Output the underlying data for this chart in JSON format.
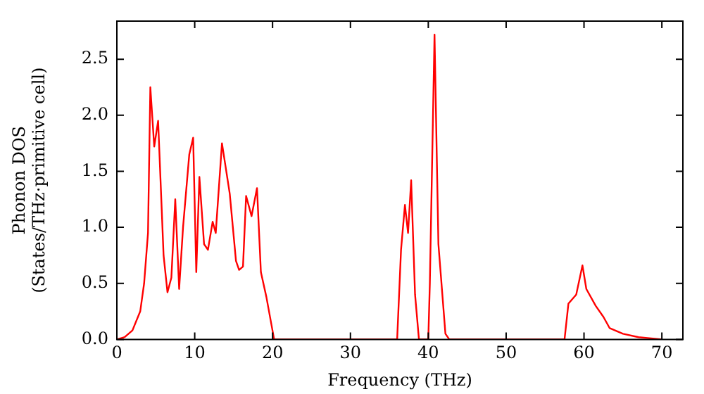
{
  "chart_data": {
    "type": "line",
    "xlabel": "Frequency (THz)",
    "ylabel": "Phonon DOS\n(States/THz·primitive cell)",
    "x": [
      0,
      1,
      2,
      3,
      3.5,
      4,
      4.3,
      4.8,
      5.3,
      6,
      6.5,
      7,
      7.5,
      8,
      8.5,
      9.3,
      9.8,
      10.2,
      10.6,
      11.2,
      11.7,
      12.3,
      12.7,
      13.5,
      14.5,
      15.3,
      15.7,
      16.2,
      16.6,
      17.3,
      18,
      18.5,
      19.2,
      20.2,
      36,
      36.5,
      37,
      37.4,
      37.8,
      38.3,
      38.8,
      40,
      40.2,
      40.8,
      41.3,
      42.2,
      42.7,
      57.5,
      58,
      59,
      59.8,
      60.3,
      61.5,
      62.5,
      63.3,
      65,
      67,
      70
    ],
    "series": [
      {
        "color": "#ff0000",
        "values": [
          0,
          0.02,
          0.08,
          0.25,
          0.5,
          0.95,
          2.25,
          1.72,
          1.95,
          0.75,
          0.42,
          0.55,
          1.25,
          0.45,
          1.0,
          1.65,
          1.8,
          0.6,
          1.45,
          0.85,
          0.8,
          1.05,
          0.95,
          1.75,
          1.3,
          0.7,
          0.62,
          0.65,
          1.28,
          1.1,
          1.35,
          0.6,
          0.38,
          0,
          0,
          0.8,
          1.2,
          0.95,
          1.42,
          0.4,
          0,
          0,
          0.5,
          2.72,
          0.85,
          0.05,
          0,
          0,
          0.32,
          0.4,
          0.66,
          0.45,
          0.3,
          0.2,
          0.1,
          0.05,
          0.02,
          0
        ]
      }
    ],
    "xlim": [
      0,
      72.7
    ],
    "xticks": [
      0,
      10,
      20,
      30,
      40,
      50,
      60,
      70
    ],
    "ylim": [
      0,
      2.84
    ],
    "yticks": [
      {
        "value": 0,
        "label": "0.0"
      },
      0.5,
      {
        "value": 1,
        "label": "1.0"
      },
      1.5,
      {
        "value": 2,
        "label": "2.0"
      },
      2.5
    ],
    "grid": false,
    "legend": false,
    "marker": "none",
    "line_style": "solid"
  }
}
